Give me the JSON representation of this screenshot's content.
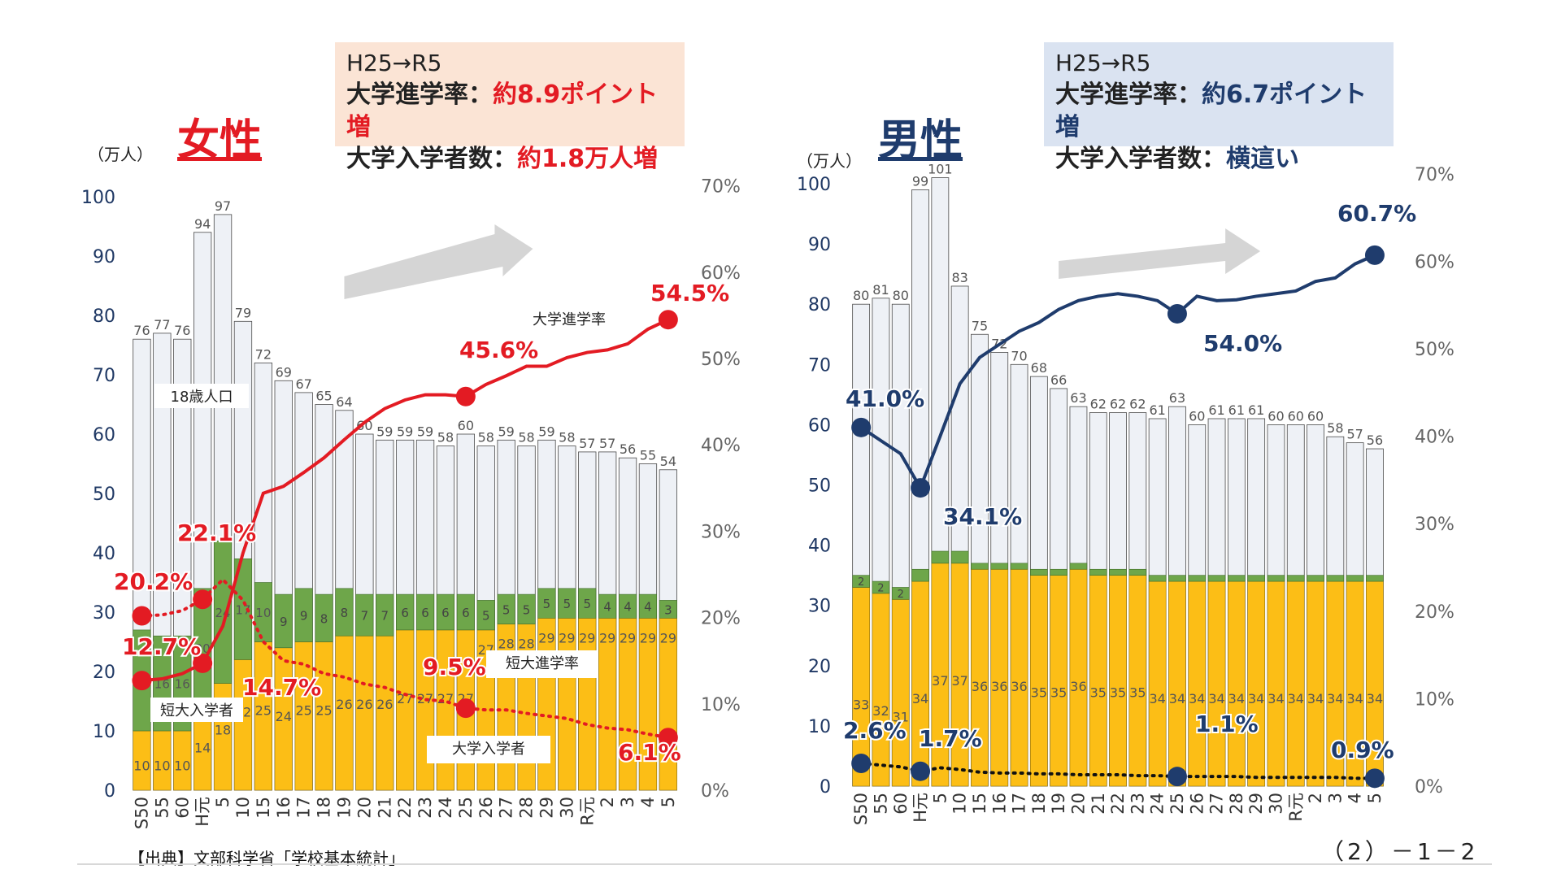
{
  "female_box": {
    "line1": "H25→R5",
    "rate_label": "大学進学率：",
    "rate_value": "約8.9ポイント増",
    "count_label": "大学入学者数：",
    "count_value": "約1.8万人増"
  },
  "male_box": {
    "line1": "H25→R5",
    "rate_label": "大学進学率：",
    "rate_value": "約6.7ポイント増",
    "count_label": "大学入学者数：",
    "count_value": "横這い"
  },
  "source": "【出典】文部科学省「学校基本統計」",
  "page_number": "（2）－1－2",
  "colors": {
    "population": "#eef1f6",
    "junior_college": "#6ea64a",
    "university": "#fcbe16",
    "female_accent": "#e31b23",
    "male_accent": "#1f3c6d",
    "arrow": "#d5d5d5"
  },
  "chart_data": [
    {
      "type": "bar",
      "title": "女性",
      "stacked": true,
      "y_unit_label": "（万人）",
      "ylim": [
        0,
        100
      ],
      "y_ticks": [
        0,
        10,
        20,
        30,
        40,
        50,
        60,
        70,
        80,
        90,
        100
      ],
      "y2lim": [
        0,
        70
      ],
      "y2_ticks": [
        "0%",
        "10%",
        "20%",
        "30%",
        "40%",
        "50%",
        "60%",
        "70%"
      ],
      "categories": [
        "S50",
        "55",
        "60",
        "H元",
        "5",
        "10",
        "15",
        "16",
        "17",
        "18",
        "19",
        "20",
        "21",
        "22",
        "23",
        "24",
        "25",
        "26",
        "27",
        "28",
        "29",
        "30",
        "R元",
        "2",
        "3",
        "4",
        "5"
      ],
      "series": [
        {
          "name": "18歳人口",
          "kind": "bar_total",
          "values": [
            76,
            77,
            76,
            94,
            97,
            79,
            72,
            69,
            67,
            65,
            64,
            60,
            59,
            59,
            59,
            58,
            60,
            58,
            59,
            58,
            59,
            58,
            57,
            57,
            56,
            55,
            54
          ]
        },
        {
          "name": "短大入学者",
          "kind": "bar",
          "values": [
            17,
            16,
            16,
            20,
            24,
            17,
            10,
            9,
            9,
            8,
            8,
            7,
            7,
            6,
            6,
            6,
            6,
            5,
            5,
            5,
            5,
            5,
            5,
            4,
            4,
            4,
            3
          ]
        },
        {
          "name": "大学入学者",
          "kind": "bar",
          "values": [
            10,
            10,
            10,
            14,
            18,
            22,
            25,
            24,
            25,
            25,
            26,
            26,
            26,
            27,
            27,
            27,
            27,
            27,
            28,
            28,
            29,
            29,
            29,
            29,
            29,
            29,
            29
          ]
        },
        {
          "name": "大学進学率",
          "kind": "line",
          "values": [
            12.7,
            12.9,
            13.5,
            14.7,
            19.0,
            27.5,
            34.4,
            35.2,
            36.8,
            38.5,
            40.6,
            42.6,
            44.2,
            45.2,
            45.8,
            45.8,
            45.6,
            47.0,
            48.0,
            49.1,
            49.1,
            50.1,
            50.7,
            51.0,
            51.7,
            53.4,
            54.5
          ]
        },
        {
          "name": "短大進学率",
          "kind": "line",
          "values": [
            20.2,
            20.3,
            20.8,
            22.1,
            24.4,
            22.0,
            17.2,
            15.0,
            14.6,
            13.5,
            13.1,
            12.3,
            11.9,
            11.1,
            10.5,
            10.3,
            9.5,
            9.3,
            9.3,
            8.9,
            8.6,
            8.3,
            7.6,
            7.2,
            7.0,
            6.5,
            6.1
          ]
        }
      ],
      "data_labels": {
        "大学進学率_S50": "12.7%",
        "大学進学率_H元": "14.7%",
        "大学進学率_25": "45.6%",
        "大学進学率_5": "54.5%",
        "短大進学率_S50": "20.2%",
        "短大進学率_H元": "22.1%",
        "短大進学率_25": "9.5%",
        "短大進学率_5": "6.1%"
      },
      "legend_labels": [
        "18歳人口",
        "大学進学率",
        "短大入学者",
        "短大進学率",
        "大学入学者"
      ]
    },
    {
      "type": "bar",
      "title": "男性",
      "stacked": true,
      "y_unit_label": "（万人）",
      "ylim": [
        0,
        100
      ],
      "y_ticks": [
        0,
        10,
        20,
        30,
        40,
        50,
        60,
        70,
        80,
        90,
        100
      ],
      "y2lim": [
        0,
        70
      ],
      "y2_ticks": [
        "0%",
        "10%",
        "20%",
        "30%",
        "40%",
        "50%",
        "60%",
        "70%"
      ],
      "categories": [
        "S50",
        "55",
        "60",
        "H元",
        "5",
        "10",
        "15",
        "16",
        "17",
        "18",
        "19",
        "20",
        "21",
        "22",
        "23",
        "24",
        "25",
        "26",
        "27",
        "28",
        "29",
        "30",
        "R元",
        "2",
        "3",
        "4",
        "5"
      ],
      "series": [
        {
          "name": "18歳人口",
          "kind": "bar_total",
          "values": [
            80,
            81,
            80,
            99,
            101,
            83,
            75,
            72,
            70,
            68,
            66,
            63,
            62,
            62,
            62,
            61,
            63,
            60,
            61,
            61,
            61,
            60,
            60,
            60,
            58,
            57,
            56
          ]
        },
        {
          "name": "短大入学者",
          "kind": "bar",
          "values": [
            2,
            2,
            2,
            2,
            2,
            2,
            1,
            1,
            1,
            1,
            1,
            1,
            1,
            1,
            1,
            1,
            1,
            1,
            1,
            1,
            1,
            1,
            1,
            1,
            1,
            1,
            1
          ]
        },
        {
          "name": "大学入学者",
          "kind": "bar",
          "values": [
            33,
            32,
            31,
            34,
            37,
            37,
            36,
            36,
            36,
            35,
            35,
            36,
            35,
            35,
            35,
            34,
            34,
            34,
            34,
            34,
            34,
            34,
            34,
            34,
            34,
            34,
            34
          ]
        },
        {
          "name": "大学進学率",
          "kind": "line",
          "values": [
            41.0,
            39.5,
            38.0,
            34.1,
            40.0,
            46.0,
            49.0,
            50.5,
            52.0,
            53.0,
            54.5,
            55.5,
            56.0,
            56.3,
            56.0,
            55.5,
            54.0,
            56.0,
            55.5,
            55.6,
            56.0,
            56.3,
            56.6,
            57.7,
            58.1,
            59.7,
            60.7
          ]
        },
        {
          "name": "短大進学率",
          "kind": "line",
          "values": [
            2.6,
            2.4,
            2.2,
            1.7,
            2.1,
            1.9,
            1.6,
            1.5,
            1.5,
            1.4,
            1.4,
            1.3,
            1.3,
            1.3,
            1.2,
            1.2,
            1.1,
            1.1,
            1.1,
            1.1,
            1.0,
            1.0,
            1.0,
            1.0,
            1.0,
            0.9,
            0.9
          ]
        }
      ],
      "data_labels": {
        "大学進学率_S50": "41.0%",
        "大学進学率_H元": "34.1%",
        "大学進学率_25": "54.0%",
        "大学進学率_5": "60.7%",
        "短大進学率_S50": "2.6%",
        "短大進学率_H元": "1.7%",
        "短大進学率_25": "1.1%",
        "短大進学率_5": "0.9%"
      }
    }
  ]
}
